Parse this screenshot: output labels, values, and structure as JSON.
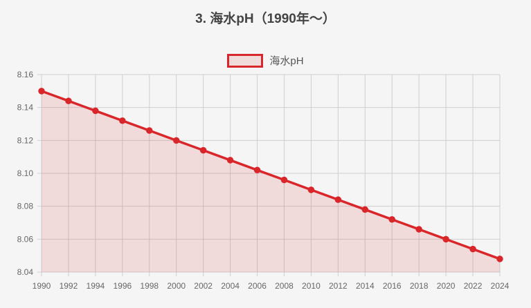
{
  "chart_title": "3. 海水pH（1990年～）",
  "legend": {
    "label": "海水pH",
    "color": "#d9262a",
    "fill": "#f1dcdc"
  },
  "chart_data": {
    "type": "line",
    "title": "3. 海水pH（1990年～）",
    "xlabel": "",
    "ylabel": "",
    "x": [
      "1990",
      "1992",
      "1994",
      "1996",
      "1998",
      "2000",
      "2002",
      "2004",
      "2006",
      "2008",
      "2010",
      "2012",
      "2014",
      "2016",
      "2018",
      "2020",
      "2022",
      "2024"
    ],
    "series": [
      {
        "name": "海水pH",
        "values": [
          8.15,
          8.144,
          8.138,
          8.132,
          8.126,
          8.12,
          8.114,
          8.108,
          8.102,
          8.096,
          8.09,
          8.084,
          8.078,
          8.072,
          8.066,
          8.06,
          8.054,
          8.048
        ],
        "color": "#d9262a",
        "fill": true
      }
    ],
    "ylim": [
      8.04,
      8.16
    ],
    "yticks": [
      "8.16",
      "8.14",
      "8.12",
      "8.10",
      "8.08",
      "8.06",
      "8.04"
    ],
    "grid": true,
    "legend_position": "top"
  }
}
